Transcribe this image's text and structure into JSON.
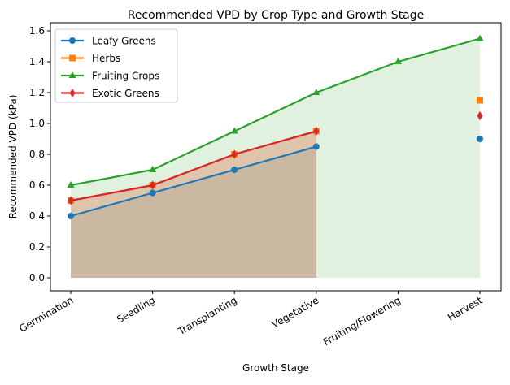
{
  "chart_data": {
    "type": "line",
    "title": "Recommended VPD by Crop Type and Growth Stage",
    "xlabel": "Growth Stage",
    "ylabel": "Recommended VPD (kPa)",
    "categories": [
      "Germination",
      "Seedling",
      "Transplanting",
      "Vegetative",
      "Fruiting/Flowering",
      "Harvest"
    ],
    "ylim": [
      -0.08,
      1.64
    ],
    "yticks": [
      "0.0",
      "0.2",
      "0.4",
      "0.6",
      "0.8",
      "1.0",
      "1.2",
      "1.4",
      "1.6"
    ],
    "grid": false,
    "legend_position": "top-left",
    "filled_under_lines": true,
    "series": [
      {
        "name": "Leafy Greens",
        "color": "#1f77b4",
        "marker": "circle",
        "values": [
          0.4,
          0.55,
          0.7,
          0.85,
          null,
          0.9
        ]
      },
      {
        "name": "Herbs",
        "color": "#ff7f0e",
        "marker": "square",
        "values": [
          0.5,
          0.6,
          0.8,
          0.95,
          null,
          1.15
        ]
      },
      {
        "name": "Fruiting Crops",
        "color": "#2ca02c",
        "marker": "triangle",
        "values": [
          0.6,
          0.7,
          0.95,
          1.2,
          1.4,
          1.55
        ]
      },
      {
        "name": "Exotic Greens",
        "color": "#d62728",
        "marker": "diamond",
        "values": [
          0.5,
          0.6,
          0.8,
          0.95,
          null,
          1.05
        ]
      }
    ]
  }
}
